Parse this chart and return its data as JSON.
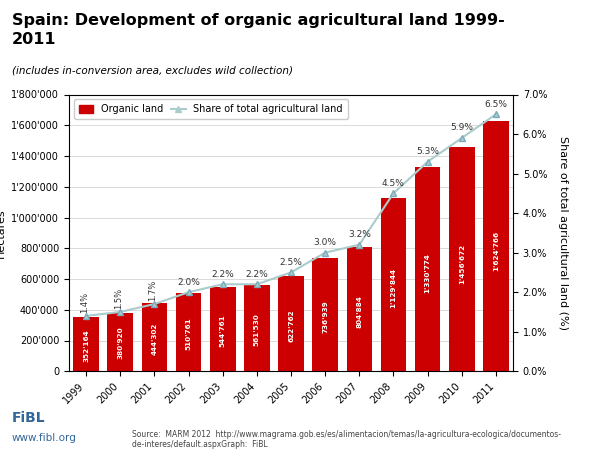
{
  "title": "Spain: Development of organic agricultural land 1999-\n2011",
  "subtitle": "(includes in-conversion area, excludes wild collection)",
  "years": [
    1999,
    2000,
    2001,
    2002,
    2003,
    2004,
    2005,
    2006,
    2007,
    2008,
    2009,
    2010,
    2011
  ],
  "hectares": [
    352164,
    380920,
    444302,
    510761,
    544761,
    561530,
    622762,
    736939,
    804884,
    1129844,
    1330774,
    1456672,
    1624766
  ],
  "shares": [
    1.4,
    1.5,
    1.7,
    2.0,
    2.2,
    2.2,
    2.5,
    3.0,
    3.2,
    4.5,
    5.3,
    5.9,
    6.5
  ],
  "bar_color": "#cc0000",
  "line_color": "#aacccc",
  "marker_color": "#aacccc",
  "ylabel_right": "Share of total agricultural land (%)",
  "ylim_left": [
    0,
    1800000
  ],
  "ylim_right": [
    0,
    7.0
  ],
  "yticks_left": [
    0,
    200000,
    400000,
    600000,
    800000,
    1000000,
    1200000,
    1400000,
    1600000,
    1800000
  ],
  "ytick_labels_left": [
    "0",
    "200'000",
    "400'000",
    "600'000",
    "800'000",
    "1'000'000",
    "1'200'000",
    "1'400'000",
    "1'600'000",
    "1'800'000"
  ],
  "yticks_right": [
    0.0,
    1.0,
    2.0,
    3.0,
    4.0,
    5.0,
    6.0,
    7.0
  ],
  "ytick_labels_right": [
    "0.0%",
    "1.0%",
    "2.0%",
    "3.0%",
    "4.0%",
    "5.0%",
    "6.0%",
    "7.0%"
  ],
  "source_text": "Source:  MARM 2012  http://www.magrama.gob.es/es/alimentacion/temas/la-agricultura-ecologica/documentos-\nde-interes/default.aspxGraph:  FiBL",
  "fibl_text": "FiBL",
  "fibl_url": "www.fibl.org",
  "fibl_color": "#336699",
  "bg_color": "#ffffff",
  "legend_organic": "Organic land",
  "legend_share": "Share of total agricultural land",
  "share_label_rotated_idx": [
    0,
    1,
    2
  ],
  "bar_value_labels": [
    "352'164",
    "380'920",
    "444'302",
    "510'761",
    "544'761",
    "561'530",
    "622'762",
    "736'939",
    "804'884",
    "1'129'844",
    "1'330'774",
    "1'456'672",
    "1'624'766"
  ]
}
